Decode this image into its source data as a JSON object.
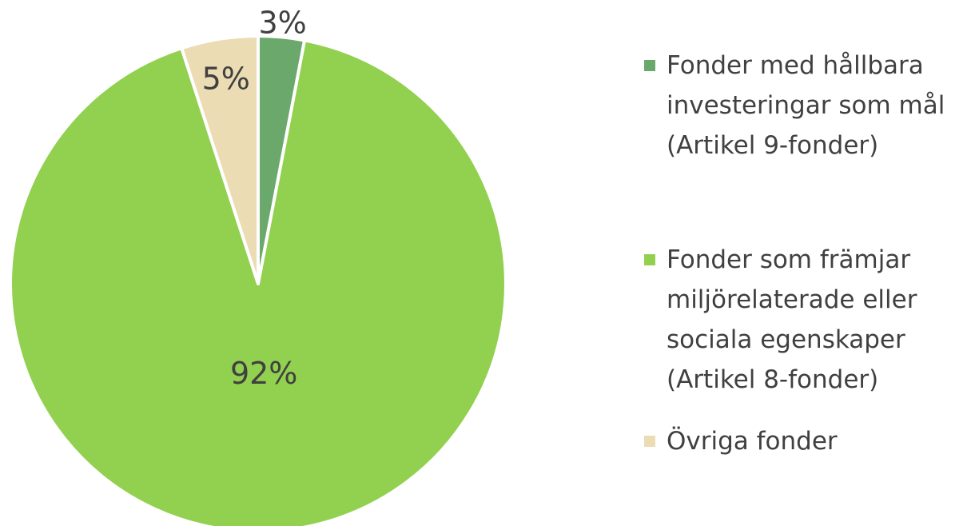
{
  "chart_data": {
    "type": "pie",
    "categories": [
      "Fonder med hållbara investeringar som mål (Artikel 9-fonder)",
      "Fonder som främjar miljörelaterade eller sociala egenskaper (Artikel 8-fonder)",
      "Övriga fonder"
    ],
    "values": [
      3,
      92,
      5
    ],
    "value_labels": [
      "3%",
      "92%",
      "5%"
    ],
    "colors": [
      "#6aa86c",
      "#92d050",
      "#ecdcb4"
    ],
    "legend": "right"
  }
}
